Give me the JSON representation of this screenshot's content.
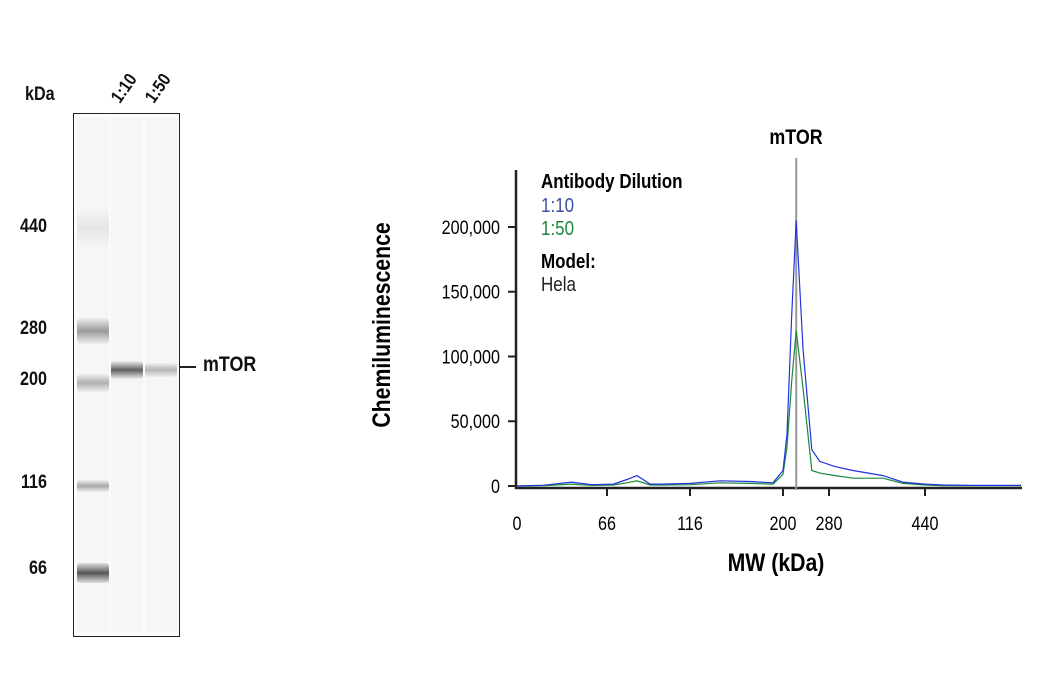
{
  "blot": {
    "unit_label": "kDa",
    "lanes": [
      "1:10",
      "1:50"
    ],
    "markers": [
      "440",
      "280",
      "200",
      "116",
      "66"
    ],
    "target_label": "mTOR"
  },
  "chart_data": {
    "type": "line",
    "title": "",
    "annotation": "mTOR",
    "xlabel": "MW (kDa)",
    "ylabel": "Chemiluminescence",
    "x_ticks": [
      0,
      66,
      116,
      200,
      280,
      440
    ],
    "x_tick_labels": [
      "0",
      "66",
      "116",
      "200",
      "280",
      "440"
    ],
    "y_ticks": [
      0,
      50000,
      100000,
      150000,
      200000
    ],
    "y_tick_labels": [
      "0",
      "50,000",
      "100,000",
      "150,000",
      "200,000"
    ],
    "ylim": [
      0,
      240000
    ],
    "marker_line_kda": 223,
    "legend": {
      "title": "Antibody Dilution",
      "model_label": "Model:",
      "model_value": "Hela",
      "placement": "top-left"
    },
    "series": [
      {
        "name": "1:10",
        "color": "#2233dd",
        "x": [
          0,
          20,
          40,
          55,
          70,
          78,
          84,
          92,
          100,
          116,
          143,
          170,
          191,
          200,
          207,
          215,
          223,
          235,
          250,
          264,
          290,
          320,
          370,
          403,
          440,
          470,
          520,
          600
        ],
        "y": [
          0,
          600,
          3000,
          1000,
          1500,
          5000,
          8000,
          1500,
          1500,
          2000,
          4000,
          3500,
          2500,
          12000,
          40000,
          130000,
          205000,
          105000,
          28000,
          19000,
          15000,
          12000,
          8000,
          3000,
          1500,
          800,
          500,
          500
        ]
      },
      {
        "name": "1:50",
        "color": "#1a8a3a",
        "x": [
          0,
          20,
          40,
          55,
          70,
          78,
          84,
          92,
          100,
          116,
          143,
          170,
          191,
          200,
          207,
          215,
          223,
          235,
          250,
          264,
          290,
          320,
          370,
          403,
          440,
          470,
          520,
          600
        ],
        "y": [
          0,
          300,
          1500,
          500,
          800,
          2500,
          4000,
          800,
          800,
          1000,
          2500,
          2000,
          1500,
          9000,
          30000,
          80000,
          120000,
          75000,
          12000,
          10000,
          8000,
          6000,
          6000,
          2000,
          800,
          300,
          200,
          200
        ]
      }
    ]
  }
}
